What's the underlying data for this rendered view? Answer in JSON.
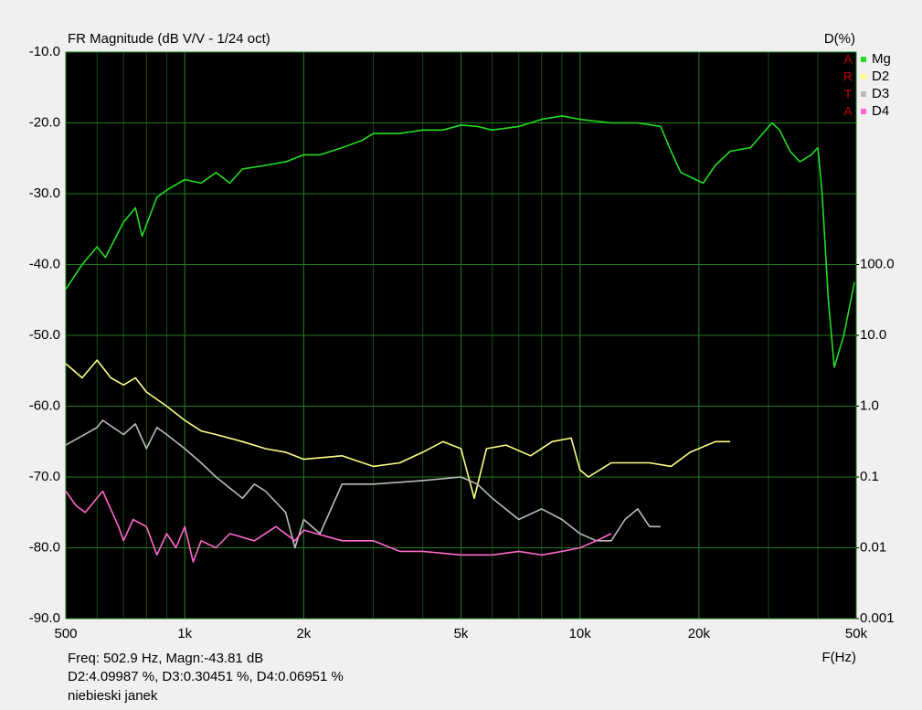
{
  "chart_data": {
    "type": "line",
    "title": "FR Magnitude (dB V/V - 1/24 oct)",
    "y2_label": "D(%)",
    "x_label": "F(Hz)",
    "watermark": [
      "A",
      "R",
      "T",
      "A"
    ],
    "xscale": "log",
    "xlim": [
      500,
      50000
    ],
    "xticks": [
      500,
      {
        "value": 1000,
        "label": "1k"
      },
      {
        "value": 2000,
        "label": "2k"
      },
      {
        "value": 5000,
        "label": "5k"
      },
      {
        "value": 10000,
        "label": "10k"
      },
      {
        "value": 20000,
        "label": "20k"
      },
      {
        "value": 50000,
        "label": "50k"
      }
    ],
    "ylim": [
      -90,
      -10
    ],
    "yticks": [
      {
        "value": -10,
        "label": "-10.0"
      },
      {
        "value": -20,
        "label": "-20.0"
      },
      {
        "value": -30,
        "label": "-30.0"
      },
      {
        "value": -40,
        "label": "-40.0"
      },
      {
        "value": -50,
        "label": "-50.0"
      },
      {
        "value": -60,
        "label": "-60.0"
      },
      {
        "value": -70,
        "label": "-70.0"
      },
      {
        "value": -80,
        "label": "-80.0"
      },
      {
        "value": -90,
        "label": "-90.0"
      }
    ],
    "y2scale": "log",
    "y2lim": [
      0.001,
      100000
    ],
    "y2ticks": [
      0.001,
      0.01,
      0.1,
      {
        "value": 1,
        "label": "1.0"
      },
      {
        "value": 10,
        "label": "10.0"
      },
      {
        "value": 100,
        "label": "100.0"
      }
    ],
    "grid": true,
    "series": [
      {
        "name": "Mg",
        "color": "#22dd22",
        "x": [
          500,
          550,
          600,
          630,
          700,
          750,
          780,
          850,
          900,
          1000,
          1100,
          1200,
          1300,
          1400,
          1600,
          1800,
          2000,
          2200,
          2500,
          2800,
          3000,
          3500,
          4000,
          4500,
          5000,
          5500,
          6000,
          7000,
          8000,
          9000,
          10000,
          12000,
          14000,
          16000,
          17000,
          18000,
          20500,
          22000,
          24000,
          27000,
          30600,
          32000,
          34000,
          36000,
          38500,
          40000,
          41000,
          42500,
          44000,
          46500,
          49500
        ],
        "values": [
          -43.5,
          -40,
          -37.5,
          -39,
          -34,
          -32,
          -36,
          -30.5,
          -29.5,
          -28,
          -28.5,
          -27,
          -28.5,
          -26.5,
          -26,
          -25.5,
          -24.5,
          -24.5,
          -23.5,
          -22.5,
          -21.5,
          -21.5,
          -21,
          -21,
          -20.3,
          -20.5,
          -21,
          -20.5,
          -19.5,
          -19,
          -19.5,
          -20,
          -20,
          -20.5,
          -24,
          -27,
          -28.5,
          -26,
          -24,
          -23.5,
          -20,
          -21,
          -24,
          -25.5,
          -24.5,
          -23.5,
          -30,
          -45,
          -54.5,
          -50,
          -42.5
        ]
      },
      {
        "name": "D2",
        "color": "#ffff88",
        "x": [
          500,
          550,
          600,
          650,
          700,
          750,
          800,
          900,
          1000,
          1100,
          1200,
          1400,
          1600,
          1800,
          2000,
          2500,
          3000,
          3500,
          4000,
          4500,
          5000,
          5400,
          5800,
          6500,
          7500,
          8500,
          9500,
          10000,
          10500,
          12000,
          15000,
          17000,
          19000,
          22000,
          24000
        ],
        "values": [
          -54,
          -56,
          -53.5,
          -56,
          -57,
          -56,
          -58,
          -60,
          -62,
          -63.5,
          -64,
          -65,
          -66,
          -66.5,
          -67.5,
          -67,
          -68.5,
          -68,
          -66.5,
          -65,
          -66,
          -73,
          -66,
          -65.5,
          -67,
          -65,
          -64.5,
          -69,
          -70,
          -68,
          -68,
          -68.5,
          -66.5,
          -65,
          -65
        ]
      },
      {
        "name": "D3",
        "color": "#bbbbbb",
        "x": [
          500,
          600,
          620,
          700,
          750,
          800,
          850,
          900,
          1000,
          1100,
          1200,
          1400,
          1500,
          1600,
          1800,
          1900,
          2000,
          2200,
          2500,
          3000,
          4000,
          5000,
          5500,
          6000,
          7000,
          8000,
          9000,
          10000,
          11000,
          12000,
          13000,
          14000,
          15000,
          16000
        ],
        "values": [
          -65.5,
          -63,
          -62,
          -64,
          -62.5,
          -66,
          -63,
          -64,
          -66,
          -68,
          -70,
          -73,
          -71,
          -72,
          -75,
          -80,
          -76,
          -78,
          -71,
          -71,
          -70.5,
          -70,
          -71,
          -73,
          -76,
          -74.5,
          -76,
          -78,
          -79,
          -79,
          -76,
          -74.5,
          -77,
          -77
        ]
      },
      {
        "name": "D4",
        "color": "#ff66cc",
        "x": [
          500,
          530,
          560,
          620,
          680,
          700,
          740,
          800,
          850,
          900,
          950,
          1000,
          1050,
          1100,
          1200,
          1300,
          1500,
          1700,
          1900,
          2000,
          2500,
          3000,
          3500,
          4000,
          5000,
          6000,
          7000,
          8000,
          9000,
          10000,
          11000,
          12000
        ],
        "values": [
          -72,
          -74,
          -75,
          -72,
          -77,
          -79,
          -76,
          -77,
          -81,
          -78,
          -80,
          -77,
          -82,
          -79,
          -80,
          -78,
          -79,
          -77,
          -79,
          -77.5,
          -79,
          -79,
          -80.5,
          -80.5,
          -81,
          -81,
          -80.5,
          -81,
          -80.5,
          -80,
          -79,
          -78
        ]
      }
    ],
    "readout": [
      "Freq: 502.9 Hz, Magn:-43.81 dB",
      "D2:4.09987 %, D3:0.30451 %, D4:0.06951 %",
      "niebieski janek"
    ]
  }
}
